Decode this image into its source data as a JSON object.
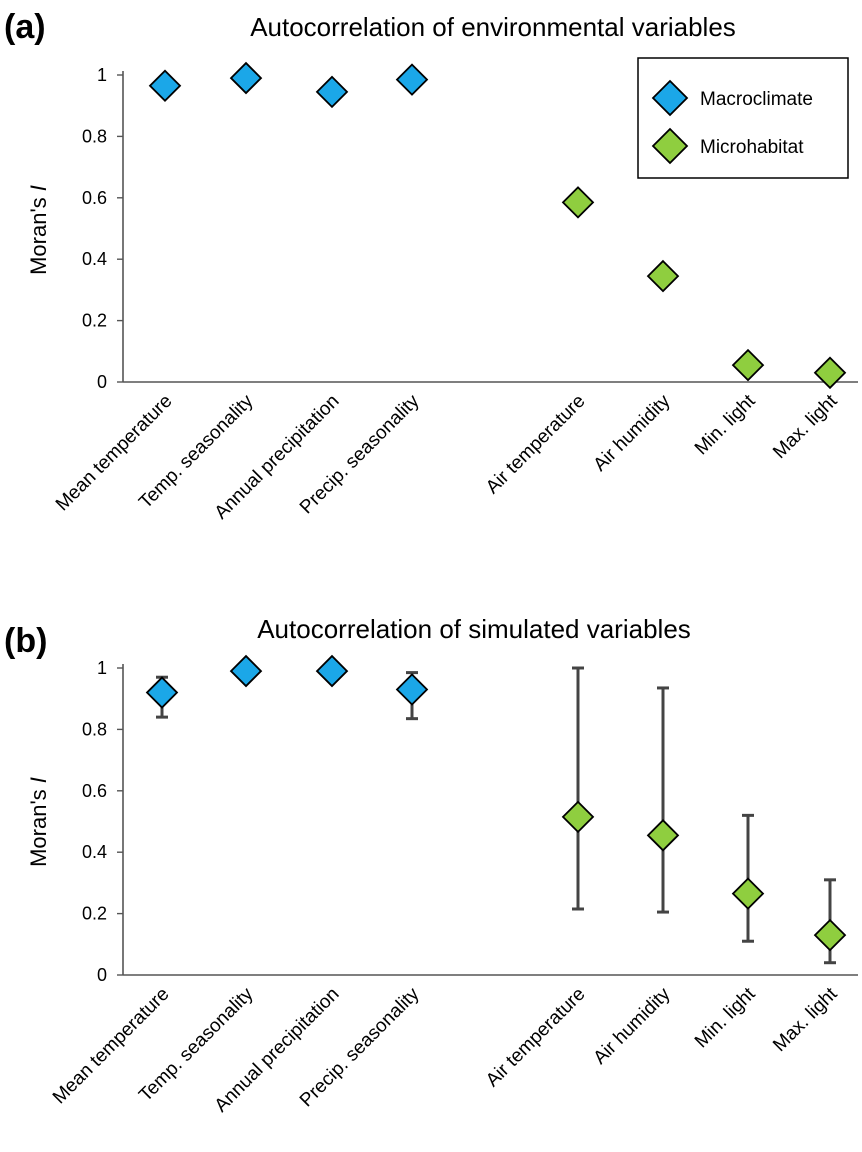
{
  "chart_data": [
    {
      "type": "scatter",
      "panel_label": "(a)",
      "title": "Autocorrelation of environmental variables",
      "xlabel": "",
      "ylabel": "Moran's I",
      "ylim": [
        0,
        1
      ],
      "yticks": [
        "0",
        "0.2",
        "0.4",
        "0.6",
        "0.8",
        "1"
      ],
      "categories": [
        "Mean temperature",
        "Temp. seasonality",
        "Annual precipitation",
        "Precip. seasonality",
        "Air temperature",
        "Air humidity",
        "Min. light",
        "Max. light"
      ],
      "grid": false,
      "legend": {
        "placement": "top-right",
        "entries": [
          {
            "name": "Macroclimate",
            "color": "#1ba7e8"
          },
          {
            "name": "Microhabitat",
            "color": "#8fce3f"
          }
        ]
      },
      "series": [
        {
          "name": "Macroclimate",
          "color": "#1ba7e8",
          "marker": "diamond",
          "points": [
            {
              "category": "Mean temperature",
              "y": 0.965
            },
            {
              "category": "Temp. seasonality",
              "y": 0.99
            },
            {
              "category": "Annual precipitation",
              "y": 0.945
            },
            {
              "category": "Precip. seasonality",
              "y": 0.985
            }
          ]
        },
        {
          "name": "Microhabitat",
          "color": "#8fce3f",
          "marker": "diamond",
          "points": [
            {
              "category": "Air temperature",
              "y": 0.585
            },
            {
              "category": "Air humidity",
              "y": 0.345
            },
            {
              "category": "Min. light",
              "y": 0.055
            },
            {
              "category": "Max. light",
              "y": 0.03
            }
          ]
        }
      ]
    },
    {
      "type": "scatter",
      "panel_label": "(b)",
      "title": "Autocorrelation of simulated variables",
      "xlabel": "",
      "ylabel": "Moran's I",
      "ylim": [
        0,
        1
      ],
      "yticks": [
        "0",
        "0.2",
        "0.4",
        "0.6",
        "0.8",
        "1"
      ],
      "categories": [
        "Mean temperature",
        "Temp. seasonality",
        "Annual precipitation",
        "Precip. seasonality",
        "Air temperature",
        "Air humidity",
        "Min. light",
        "Max. light"
      ],
      "grid": false,
      "series": [
        {
          "name": "Macroclimate",
          "color": "#1ba7e8",
          "marker": "diamond",
          "points": [
            {
              "category": "Mean temperature",
              "y": 0.92,
              "low": 0.84,
              "high": 0.97
            },
            {
              "category": "Temp. seasonality",
              "y": 0.99
            },
            {
              "category": "Annual precipitation",
              "y": 0.99
            },
            {
              "category": "Precip. seasonality",
              "y": 0.93,
              "low": 0.835,
              "high": 0.985
            }
          ]
        },
        {
          "name": "Microhabitat",
          "color": "#8fce3f",
          "marker": "diamond",
          "points": [
            {
              "category": "Air temperature",
              "y": 0.515,
              "low": 0.215,
              "high": 1.0
            },
            {
              "category": "Air humidity",
              "y": 0.455,
              "low": 0.205,
              "high": 0.935
            },
            {
              "category": "Min. light",
              "y": 0.265,
              "low": 0.11,
              "high": 0.52
            },
            {
              "category": "Max. light",
              "y": 0.13,
              "low": 0.04,
              "high": 0.31
            }
          ]
        }
      ]
    }
  ]
}
